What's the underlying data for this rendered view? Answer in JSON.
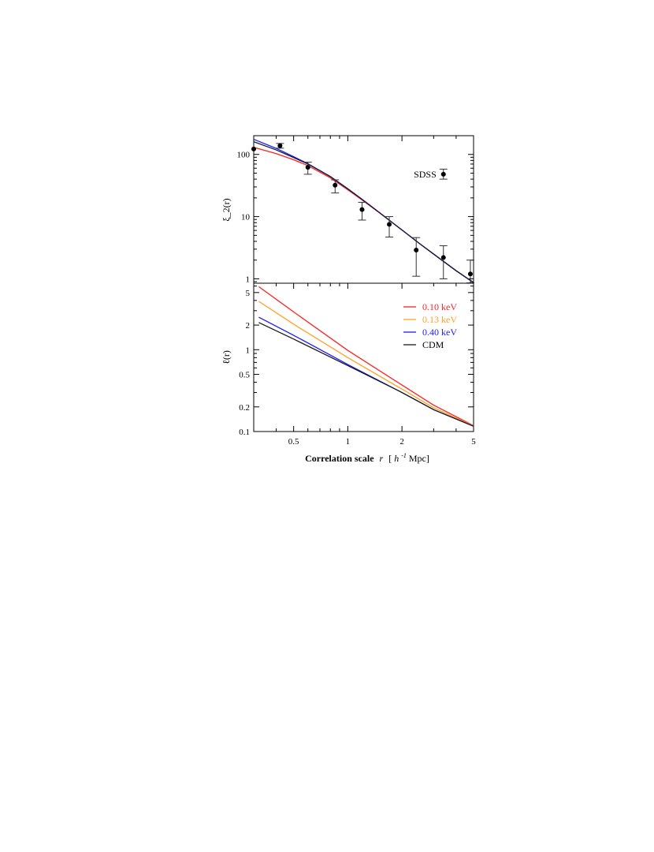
{
  "chart_data": [
    {
      "panel": "top",
      "type": "line",
      "ylabel": "ξ_2(r)",
      "xscale": "log",
      "yscale": "log",
      "xlim": [
        0.3,
        5.0
      ],
      "ylim": [
        0.85,
        200
      ],
      "yticks": [
        1,
        10,
        100
      ],
      "yticklabels": [
        "1",
        "10",
        "100"
      ],
      "series": [
        {
          "key": "wdm010",
          "color": "#ff2020",
          "x": [
            0.3,
            0.4,
            0.5,
            0.6,
            0.8,
            1.0,
            1.2,
            1.5,
            2.0,
            2.5,
            3.0,
            4.0,
            5.0
          ],
          "y": [
            130,
            103,
            82,
            66,
            42,
            27,
            18.5,
            11.5,
            6.1,
            3.7,
            2.5,
            1.35,
            0.87
          ]
        },
        {
          "key": "wdm040",
          "color": "#1a1aff",
          "x": [
            0.3,
            0.4,
            0.5,
            0.6,
            0.8,
            1.0,
            1.2,
            1.5,
            2.0,
            2.5,
            3.0,
            4.0,
            5.0
          ],
          "y": [
            175,
            125,
            92,
            71,
            44,
            28,
            19,
            11.6,
            6.1,
            3.7,
            2.5,
            1.35,
            0.87
          ]
        },
        {
          "key": "cdm",
          "color": "#1a1a3a",
          "x": [
            0.3,
            0.4,
            0.5,
            0.6,
            0.8,
            1.0,
            1.2,
            1.5,
            2.0,
            2.5,
            3.0,
            4.0,
            5.0
          ],
          "y": [
            160,
            118,
            89,
            70,
            44,
            28,
            19,
            11.6,
            6.1,
            3.7,
            2.5,
            1.35,
            0.87
          ]
        }
      ],
      "observations": {
        "label": "SDSS",
        "x": [
          0.3,
          0.42,
          0.6,
          0.85,
          1.2,
          1.7,
          2.4,
          3.4,
          4.8
        ],
        "y": [
          122,
          138,
          62,
          32,
          13,
          7.5,
          2.9,
          2.2,
          1.2
        ],
        "yerr_low": [
          122,
          126,
          48,
          24,
          8.8,
          4.7,
          1.1,
          1.0,
          0.86
        ],
        "yerr_high": [
          122,
          150,
          75,
          39,
          17,
          10,
          4.6,
          3.4,
          2.0
        ],
        "legend_point": {
          "x": 3.4,
          "y": 48,
          "lo": 40,
          "hi": 58
        }
      }
    },
    {
      "panel": "bottom",
      "type": "line",
      "xlabel_main": "Correlation scale",
      "xlabel_r": "r",
      "xlabel_unit_open": "[",
      "xlabel_h": "h",
      "xlabel_sup": "-1",
      "xlabel_unit_close": "Mpc]",
      "ylabel": "ℓ(r)",
      "xscale": "log",
      "yscale": "log",
      "xlim": [
        0.3,
        5.0
      ],
      "ylim": [
        0.1,
        6.5
      ],
      "xticks": [
        0.5,
        1,
        2,
        5
      ],
      "xticklabels": [
        "0.5",
        "1",
        "2",
        "5"
      ],
      "yticks": [
        0.1,
        0.2,
        0.5,
        1,
        2,
        5
      ],
      "yticklabels": [
        "0.1",
        "0.2",
        "0.5",
        "1",
        "2",
        "5"
      ],
      "legend_position": "top-right",
      "series": [
        {
          "name": "0.10 keV",
          "color": "#ff2020",
          "x": [
            0.32,
            0.5,
            1.0,
            2.0,
            3.0,
            5.0
          ],
          "y": [
            5.9,
            2.9,
            0.98,
            0.37,
            0.21,
            0.118
          ]
        },
        {
          "name": "0.13 keV",
          "color": "#ffa020",
          "x": [
            0.32,
            0.5,
            1.0,
            2.0,
            3.0,
            5.0
          ],
          "y": [
            3.9,
            2.05,
            0.8,
            0.33,
            0.195,
            0.117
          ]
        },
        {
          "name": "0.40 keV",
          "color": "#1a1aff",
          "x": [
            0.32,
            0.5,
            1.0,
            2.0,
            3.0,
            5.0
          ],
          "y": [
            2.5,
            1.5,
            0.66,
            0.3,
            0.185,
            0.116
          ]
        },
        {
          "name": "CDM",
          "color": "#1a1a1a",
          "x": [
            0.32,
            0.5,
            1.0,
            2.0,
            3.0,
            5.0
          ],
          "y": [
            2.15,
            1.35,
            0.64,
            0.3,
            0.185,
            0.116
          ]
        }
      ]
    }
  ]
}
